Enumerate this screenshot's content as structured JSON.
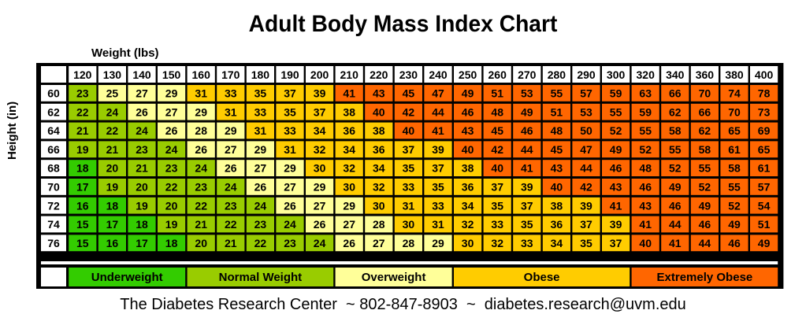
{
  "title": "Adult Body Mass Index Chart",
  "footer": "The Diabetes Research Center  ~ 802-847-8903  ~  diabetes.research@uvm.edu",
  "colors": {
    "underweight": "#33cc00",
    "normal": "#99cc00",
    "overweight": "#ffff99",
    "obese": "#ffcc00",
    "extremely_obese": "#ff6600",
    "border": "#000000"
  },
  "chart_data": {
    "type": "table",
    "title": "Adult Body Mass Index Chart",
    "xlabel": "Weight (lbs)",
    "ylabel": "Height (in)",
    "weights": [
      120,
      130,
      140,
      150,
      160,
      170,
      180,
      190,
      200,
      210,
      220,
      230,
      240,
      250,
      260,
      270,
      280,
      290,
      300,
      320,
      340,
      360,
      380,
      400
    ],
    "heights": [
      60,
      62,
      64,
      66,
      68,
      70,
      72,
      74,
      76
    ],
    "bmi": [
      [
        23,
        25,
        27,
        29,
        31,
        33,
        35,
        37,
        39,
        41,
        43,
        45,
        47,
        49,
        51,
        53,
        55,
        57,
        59,
        63,
        66,
        70,
        74,
        78
      ],
      [
        22,
        24,
        26,
        27,
        29,
        31,
        33,
        35,
        37,
        38,
        40,
        42,
        44,
        46,
        48,
        49,
        51,
        53,
        55,
        59,
        62,
        66,
        70,
        73
      ],
      [
        21,
        22,
        24,
        26,
        28,
        29,
        31,
        33,
        34,
        36,
        38,
        40,
        41,
        43,
        45,
        46,
        48,
        50,
        52,
        55,
        58,
        62,
        65,
        69
      ],
      [
        19,
        21,
        23,
        24,
        26,
        27,
        29,
        31,
        32,
        34,
        36,
        37,
        39,
        40,
        42,
        44,
        45,
        47,
        49,
        52,
        55,
        58,
        61,
        65
      ],
      [
        18,
        20,
        21,
        23,
        24,
        26,
        27,
        29,
        30,
        32,
        34,
        35,
        37,
        38,
        40,
        41,
        43,
        44,
        46,
        48,
        52,
        55,
        58,
        61
      ],
      [
        17,
        19,
        20,
        22,
        23,
        24,
        26,
        27,
        29,
        30,
        32,
        33,
        35,
        36,
        37,
        39,
        40,
        42,
        43,
        46,
        49,
        52,
        55,
        57
      ],
      [
        16,
        18,
        19,
        20,
        22,
        23,
        24,
        26,
        27,
        29,
        30,
        31,
        33,
        34,
        35,
        37,
        38,
        39,
        41,
        43,
        46,
        49,
        52,
        54
      ],
      [
        15,
        17,
        18,
        19,
        21,
        22,
        23,
        24,
        26,
        27,
        28,
        30,
        31,
        32,
        33,
        35,
        36,
        37,
        39,
        41,
        44,
        46,
        49,
        51
      ],
      [
        15,
        16,
        17,
        18,
        20,
        21,
        22,
        23,
        24,
        26,
        27,
        28,
        29,
        30,
        32,
        33,
        34,
        35,
        37,
        40,
        41,
        44,
        46,
        49
      ]
    ],
    "categories": [
      {
        "label": "Underweight",
        "range": [
          0,
          18.5
        ],
        "color": "#33cc00"
      },
      {
        "label": "Normal Weight",
        "range": [
          18.5,
          25
        ],
        "color": "#99cc00"
      },
      {
        "label": "Overweight",
        "range": [
          25,
          30
        ],
        "color": "#ffff99"
      },
      {
        "label": "Obese",
        "range": [
          30,
          40
        ],
        "color": "#ffcc00"
      },
      {
        "label": "Extremely Obese",
        "range": [
          40,
          100
        ],
        "color": "#ff6600"
      }
    ],
    "legend": [
      "Underweight",
      "Normal Weight",
      "Overweight",
      "Obese",
      "Extremely Obese"
    ],
    "legend_placement": "bottom"
  }
}
